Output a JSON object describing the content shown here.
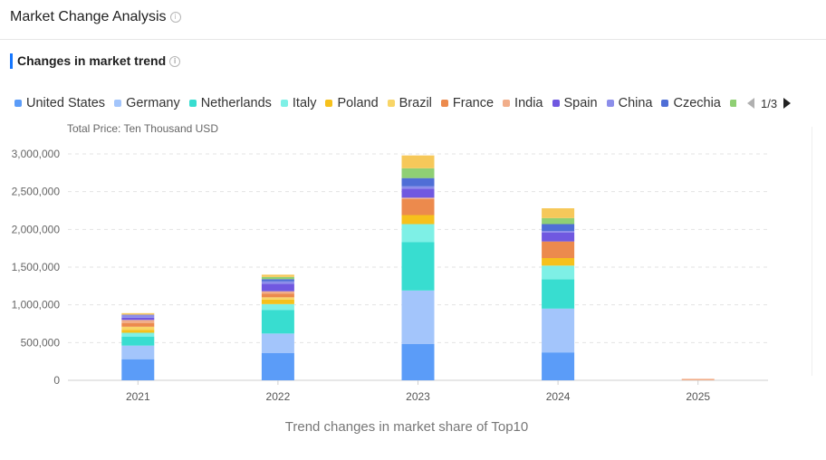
{
  "header": {
    "title": "Market Change Analysis"
  },
  "section": {
    "title": "Changes in market trend"
  },
  "legend": {
    "pager": "1/3",
    "items": [
      {
        "name": "United States",
        "color": "#5b9cf8"
      },
      {
        "name": "Germany",
        "color": "#a3c5fb"
      },
      {
        "name": "Netherlands",
        "color": "#38ddd0"
      },
      {
        "name": "Italy",
        "color": "#7ef0e6"
      },
      {
        "name": "Poland",
        "color": "#f6c11c"
      },
      {
        "name": "Brazil",
        "color": "#f8d567"
      },
      {
        "name": "France",
        "color": "#ec8a4d"
      },
      {
        "name": "India",
        "color": "#f1ae8a"
      },
      {
        "name": "Spain",
        "color": "#7058e0"
      },
      {
        "name": "China",
        "color": "#8c8eea"
      },
      {
        "name": "Czechia",
        "color": "#4f6ed6"
      },
      {
        "name": "",
        "color": "#8fcf74"
      }
    ]
  },
  "chart_data": {
    "type": "bar",
    "stacked": true,
    "unit_label": "Total Price:  Ten Thousand USD",
    "caption": "Trend changes in market share of Top10",
    "categories": [
      "2021",
      "2022",
      "2023",
      "2024",
      "2025"
    ],
    "ylim": [
      0,
      3000000
    ],
    "yticks": [
      0,
      500000,
      1000000,
      1500000,
      2000000,
      2500000,
      3000000
    ],
    "ytick_labels": [
      "0",
      "500,000",
      "1,000,000",
      "1,500,000",
      "2,000,000",
      "2,500,000",
      "3,000,000"
    ],
    "grid": true,
    "series": [
      {
        "name": "United States",
        "color": "#5b9cf8",
        "values": [
          280000,
          360000,
          480000,
          370000,
          0
        ]
      },
      {
        "name": "Germany",
        "color": "#a3c5fb",
        "values": [
          180000,
          260000,
          710000,
          580000,
          0
        ]
      },
      {
        "name": "Netherlands",
        "color": "#38ddd0",
        "values": [
          120000,
          310000,
          640000,
          390000,
          0
        ]
      },
      {
        "name": "Italy",
        "color": "#7ef0e6",
        "values": [
          50000,
          80000,
          240000,
          180000,
          0
        ]
      },
      {
        "name": "Poland",
        "color": "#f6c11c",
        "values": [
          40000,
          60000,
          120000,
          100000,
          0
        ]
      },
      {
        "name": "Brazil",
        "color": "#f8d567",
        "values": [
          40000,
          30000,
          0,
          0,
          0
        ]
      },
      {
        "name": "France",
        "color": "#ec8a4d",
        "values": [
          50000,
          50000,
          210000,
          220000,
          0
        ]
      },
      {
        "name": "India",
        "color": "#f1ae8a",
        "values": [
          40000,
          30000,
          20000,
          0,
          20000
        ]
      },
      {
        "name": "Spain",
        "color": "#7058e0",
        "values": [
          30000,
          100000,
          120000,
          120000,
          0
        ]
      },
      {
        "name": "China",
        "color": "#8c8eea",
        "values": [
          40000,
          30000,
          30000,
          20000,
          0
        ]
      },
      {
        "name": "Czechia",
        "color": "#4f6ed6",
        "values": [
          0,
          30000,
          110000,
          90000,
          0
        ]
      },
      {
        "name": "",
        "color": "#8fcf74",
        "values": [
          0,
          30000,
          130000,
          80000,
          0
        ]
      },
      {
        "name": "",
        "color": "#f6c85a",
        "values": [
          20000,
          30000,
          170000,
          130000,
          0
        ]
      }
    ]
  }
}
